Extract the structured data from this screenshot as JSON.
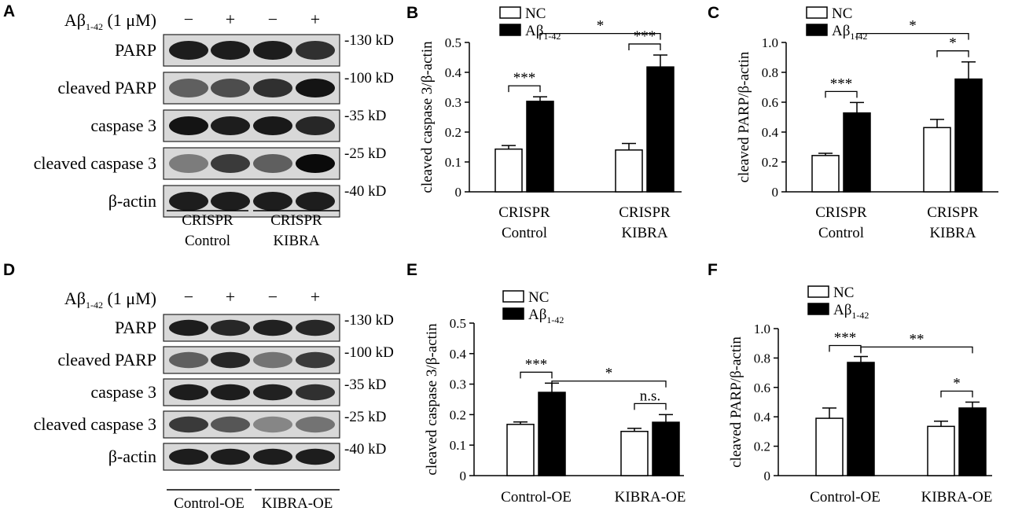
{
  "panels": {
    "A": "A",
    "B": "B",
    "C": "C",
    "D": "D",
    "E": "E",
    "F": "F"
  },
  "blots": [
    {
      "id": "A",
      "treatment": {
        "prefix": "Aβ",
        "sub": "1-42",
        "suffix": " (1 μM)",
        "signs": [
          "−",
          "+",
          "−",
          "+"
        ]
      },
      "rows": [
        {
          "label": "PARP",
          "marker": "130 kD",
          "intensity": [
            0.9,
            0.9,
            0.9,
            0.8
          ]
        },
        {
          "label": "cleaved PARP",
          "marker": "100 kD",
          "intensity": [
            0.55,
            0.65,
            0.8,
            0.95
          ]
        },
        {
          "label": "caspase 3",
          "marker": "35 kD",
          "intensity": [
            0.95,
            0.9,
            0.92,
            0.85
          ]
        },
        {
          "label": "cleaved caspase 3",
          "marker": "25 kD",
          "intensity": [
            0.4,
            0.75,
            0.55,
            1.0
          ]
        },
        {
          "label": "β-actin",
          "marker": "40 kD",
          "intensity": [
            0.9,
            0.9,
            0.9,
            0.9
          ]
        }
      ],
      "groups": [
        [
          "CRISPR",
          "Control"
        ],
        [
          "CRISPR",
          "KIBRA"
        ]
      ]
    },
    {
      "id": "D",
      "treatment": {
        "prefix": "Aβ",
        "sub": "1-42",
        "suffix": " (1 μM)",
        "signs": [
          "−",
          "+",
          "−",
          "+"
        ]
      },
      "rows": [
        {
          "label": "PARP",
          "marker": "130 kD",
          "intensity": [
            0.9,
            0.85,
            0.88,
            0.85
          ]
        },
        {
          "label": "cleaved PARP",
          "marker": "100 kD",
          "intensity": [
            0.55,
            0.85,
            0.45,
            0.75
          ]
        },
        {
          "label": "caspase 3",
          "marker": "35 kD",
          "intensity": [
            0.9,
            0.9,
            0.88,
            0.8
          ]
        },
        {
          "label": "cleaved caspase 3",
          "marker": "25 kD",
          "intensity": [
            0.75,
            0.6,
            0.35,
            0.45
          ]
        },
        {
          "label": "β-actin",
          "marker": "40 kD",
          "intensity": [
            0.9,
            0.9,
            0.9,
            0.9
          ]
        }
      ],
      "groups": [
        [
          "Control-OE"
        ],
        [
          "KIBRA-OE"
        ]
      ]
    }
  ],
  "chart_data": [
    {
      "id": "B",
      "type": "bar",
      "categories": [
        [
          "CRISPR",
          "Control"
        ],
        [
          "CRISPR",
          "KIBRA"
        ]
      ],
      "series": [
        {
          "name": "NC",
          "values": [
            0.143,
            0.14
          ],
          "errors": [
            0.012,
            0.022
          ],
          "fill": "#ffffff"
        },
        {
          "name": "Aβ",
          "name_sub": "1-42",
          "values": [
            0.303,
            0.418
          ],
          "errors": [
            0.015,
            0.04
          ],
          "fill": "#000000"
        }
      ],
      "ylabel": "cleaved caspase 3/β-actin",
      "ylim": [
        0,
        0.5
      ],
      "yticks": [
        "0",
        "0.1",
        "0.2",
        "0.3",
        "0.4",
        "0.5"
      ],
      "legend_position": "top-left",
      "sig": [
        {
          "text": "***",
          "kind": "within",
          "cat": 0
        },
        {
          "text": "***",
          "kind": "within",
          "cat": 1
        },
        {
          "text": "*",
          "kind": "between",
          "level": 0.53
        }
      ]
    },
    {
      "id": "C",
      "type": "bar",
      "categories": [
        [
          "CRISPR",
          "Control"
        ],
        [
          "CRISPR",
          "KIBRA"
        ]
      ],
      "series": [
        {
          "name": "NC",
          "values": [
            0.243,
            0.43
          ],
          "errors": [
            0.015,
            0.055
          ],
          "fill": "#ffffff"
        },
        {
          "name": "Aβ",
          "name_sub": "1-42",
          "values": [
            0.528,
            0.755
          ],
          "errors": [
            0.07,
            0.115
          ],
          "fill": "#000000"
        }
      ],
      "ylabel": "cleaved PARP/β-actin",
      "ylim": [
        0,
        1.0
      ],
      "yticks": [
        "0",
        "0.2",
        "0.4",
        "0.6",
        "0.8",
        "1.0"
      ],
      "legend_position": "top-left",
      "sig": [
        {
          "text": "***",
          "kind": "within",
          "cat": 0
        },
        {
          "text": "*",
          "kind": "within",
          "cat": 1
        },
        {
          "text": "*",
          "kind": "between",
          "level": 1.06
        }
      ]
    },
    {
      "id": "E",
      "type": "bar",
      "categories": [
        [
          "Control-OE"
        ],
        [
          "KIBRA-OE"
        ]
      ],
      "series": [
        {
          "name": "NC",
          "values": [
            0.168,
            0.145
          ],
          "errors": [
            0.008,
            0.01
          ],
          "fill": "#ffffff"
        },
        {
          "name": "Aβ",
          "name_sub": "1-42",
          "values": [
            0.273,
            0.175
          ],
          "errors": [
            0.03,
            0.025
          ],
          "fill": "#000000"
        }
      ],
      "ylabel": "cleaved caspase 3/β-actin",
      "ylim": [
        0,
        0.5
      ],
      "yticks": [
        "0",
        "0.1",
        "0.2",
        "0.3",
        "0.4",
        "0.5"
      ],
      "legend_position": "top-left",
      "sig": [
        {
          "text": "***",
          "kind": "within",
          "cat": 0
        },
        {
          "text": "n.s.",
          "kind": "within",
          "cat": 1
        },
        {
          "text": "*",
          "kind": "between",
          "level": 0.31
        }
      ]
    },
    {
      "id": "F",
      "type": "bar",
      "categories": [
        [
          "Control-OE"
        ],
        [
          "KIBRA-OE"
        ]
      ],
      "series": [
        {
          "name": "NC",
          "values": [
            0.39,
            0.335
          ],
          "errors": [
            0.07,
            0.035
          ],
          "fill": "#ffffff"
        },
        {
          "name": "Aβ",
          "name_sub": "1-42",
          "values": [
            0.77,
            0.46
          ],
          "errors": [
            0.04,
            0.04
          ],
          "fill": "#000000"
        }
      ],
      "ylabel": "cleaved PARP/β-actin",
      "ylim": [
        0,
        1.0
      ],
      "yticks": [
        "0",
        "0.2",
        "0.4",
        "0.6",
        "0.8",
        "1.0"
      ],
      "legend_position": "top-left",
      "sig": [
        {
          "text": "***",
          "kind": "within",
          "cat": 0
        },
        {
          "text": "*",
          "kind": "within",
          "cat": 1
        },
        {
          "text": "**",
          "kind": "between",
          "level": 0.875
        }
      ]
    }
  ]
}
